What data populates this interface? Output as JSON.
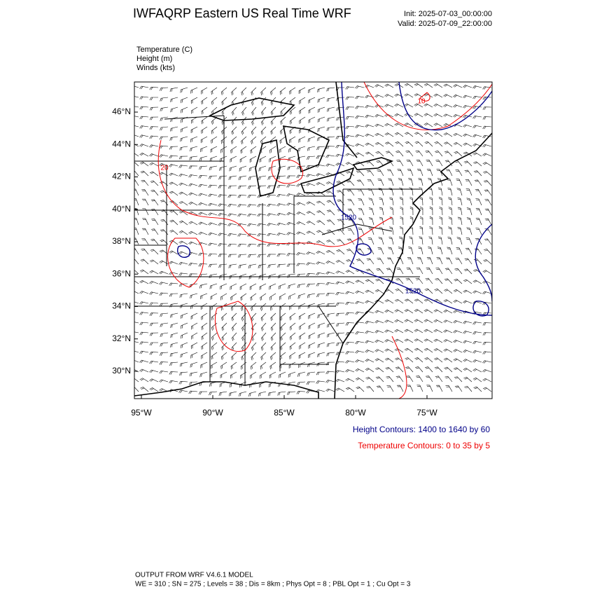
{
  "header": {
    "title": "IWFAQRP Eastern US Real Time WRF",
    "init": "Init: 2025-07-03_00:00:00",
    "valid": "Valid: 2025-07-09_22:00:00"
  },
  "fields": [
    "Temperature   (C)",
    "Height   (m)",
    "Winds   (kts)"
  ],
  "lat_labels": [
    "46°N",
    "44°N",
    "42°N",
    "40°N",
    "38°N",
    "36°N",
    "34°N",
    "32°N",
    "30°N"
  ],
  "lon_labels": [
    "95°W",
    "90°W",
    "85°W",
    "80°W",
    "75°W"
  ],
  "contour_labels": [
    "1520",
    "1520",
    "20",
    "10"
  ],
  "legend": {
    "height": "Height Contours: 1400 to 1640 by 60",
    "temperature": "Temperature Contours: 0 to 35 by 5"
  },
  "footer": [
    "OUTPUT FROM WRF V4.6.1 MODEL",
    "WE = 310 ; SN = 275 ; Levels = 38 ; Dis = 8km ; Phys Opt = 8 ; PBL Opt = 1 ; Cu Opt = 3"
  ]
}
